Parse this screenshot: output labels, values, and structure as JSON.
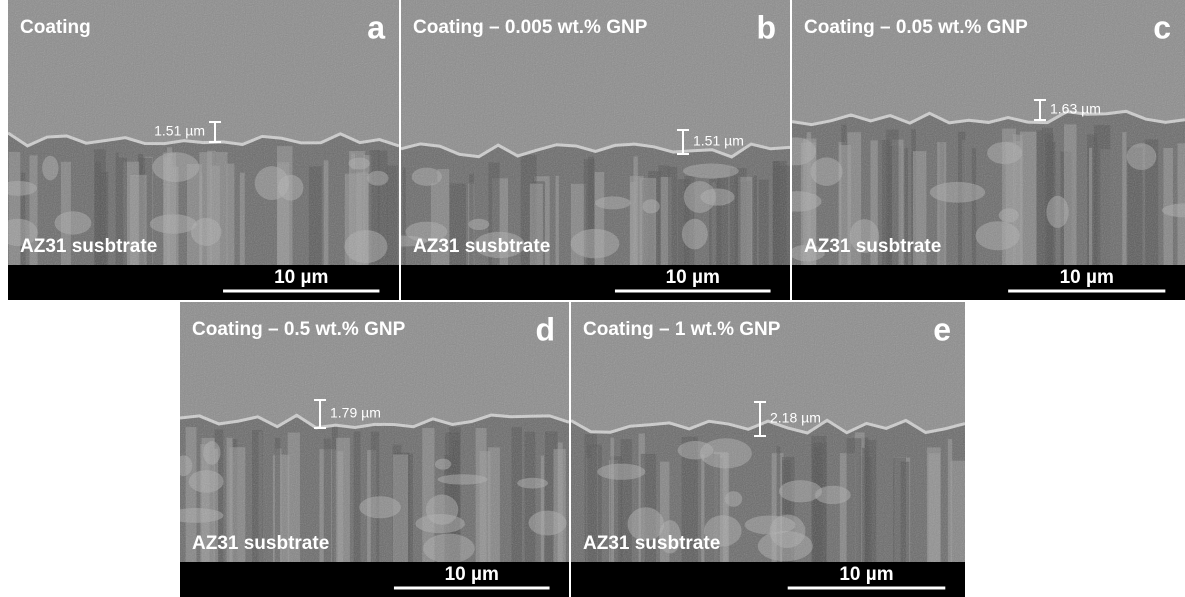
{
  "panels": [
    {
      "letter": "a",
      "title": "Coating",
      "thickness": "1.51 µm",
      "substrate": "AZ31 susbtrate",
      "scale": "10 µm"
    },
    {
      "letter": "b",
      "title": "Coating – 0.005 wt.% GNP",
      "thickness": "1.51 µm",
      "substrate": "AZ31 susbtrate",
      "scale": "10 µm"
    },
    {
      "letter": "c",
      "title": "Coating – 0.05 wt.% GNP",
      "thickness": "1.63 µm",
      "substrate": "AZ31 susbtrate",
      "scale": "10 µm"
    },
    {
      "letter": "d",
      "title": "Coating – 0.5 wt.% GNP",
      "thickness": "1.79 µm",
      "substrate": "AZ31 susbtrate",
      "scale": "10 µm"
    },
    {
      "letter": "e",
      "title": "Coating – 1 wt.% GNP",
      "thickness": "2.18 µm",
      "substrate": "AZ31 susbtrate",
      "scale": "10 µm"
    }
  ]
}
